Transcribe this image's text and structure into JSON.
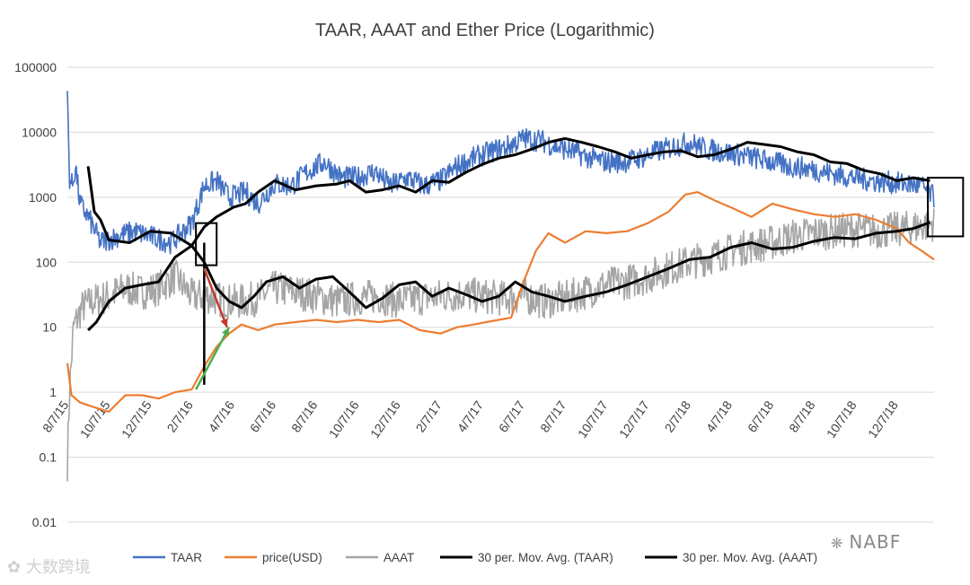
{
  "chart_data": {
    "type": "line",
    "title": "TAAR, AAAT and Ether Price (Logarithmic)",
    "yscale": "log",
    "ylim": [
      0.01,
      100000
    ],
    "y_ticks": [
      "100000",
      "10000",
      "1000",
      "100",
      "10",
      "1",
      "0.1",
      "0.01"
    ],
    "x_ticks": [
      "8/7/15",
      "10/7/15",
      "12/7/15",
      "2/7/16",
      "4/7/16",
      "6/7/16",
      "8/7/16",
      "10/7/16",
      "12/7/16",
      "2/7/17",
      "4/7/17",
      "6/7/17",
      "8/7/17",
      "10/7/17",
      "12/7/17",
      "2/7/18",
      "4/7/18",
      "6/7/18",
      "8/7/18",
      "10/7/18",
      "12/7/18"
    ],
    "x_range": [
      0,
      20.9
    ],
    "legend": "bottom",
    "series": [
      {
        "name": "TAAR",
        "color": "#4472C4",
        "noisy": true,
        "x": [
          0,
          0.05,
          0.12,
          0.2,
          0.3,
          0.5,
          0.8,
          1.2,
          1.6,
          2.0,
          2.5,
          3.0,
          3.3,
          3.6,
          3.9,
          4.3,
          4.6,
          5.0,
          5.4,
          5.8,
          6.2,
          6.6,
          7.0,
          7.4,
          7.8,
          8.2,
          8.6,
          9.0,
          9.4,
          9.8,
          10.2,
          10.6,
          11.0,
          11.4,
          11.8,
          12.2,
          12.6,
          13.0,
          13.4,
          13.8,
          14.2,
          14.6,
          15.0,
          15.4,
          15.8,
          16.2,
          16.6,
          17.0,
          17.4,
          17.8,
          18.2,
          18.6,
          19.0,
          19.4,
          19.8,
          20.2,
          20.6,
          20.9
        ],
        "y": [
          45000,
          2000,
          1500,
          3000,
          800,
          500,
          200,
          250,
          300,
          250,
          200,
          400,
          1500,
          1800,
          1000,
          1200,
          800,
          1600,
          1500,
          2500,
          3500,
          2000,
          2000,
          2500,
          1500,
          2000,
          1500,
          1800,
          3000,
          4000,
          5000,
          6000,
          8000,
          7500,
          6000,
          5000,
          4000,
          3500,
          3500,
          4000,
          5000,
          6000,
          7000,
          5500,
          5000,
          4500,
          4000,
          3500,
          3000,
          2800,
          2500,
          2200,
          2000,
          1800,
          1700,
          1600,
          1500,
          1000
        ]
      },
      {
        "name": "price(USD)",
        "color": "#ED7D31",
        "x": [
          0,
          0.1,
          0.3,
          0.6,
          1.0,
          1.4,
          1.8,
          2.2,
          2.6,
          3.0,
          3.3,
          3.6,
          3.9,
          4.2,
          4.6,
          5.0,
          5.5,
          6.0,
          6.5,
          7.0,
          7.5,
          8.0,
          8.5,
          9.0,
          9.4,
          9.8,
          10.1,
          10.4,
          10.7,
          11.0,
          11.3,
          11.6,
          12.0,
          12.5,
          13.0,
          13.5,
          14.0,
          14.5,
          14.9,
          15.2,
          15.6,
          16.0,
          16.5,
          17.0,
          17.5,
          18.0,
          18.5,
          19.0,
          19.5,
          20.0,
          20.3,
          20.6,
          20.9
        ],
        "y": [
          2.8,
          0.9,
          0.7,
          0.6,
          0.5,
          0.9,
          0.9,
          0.8,
          1.0,
          1.1,
          2.5,
          5,
          8,
          11,
          9,
          11,
          12,
          13,
          12,
          13,
          12,
          13,
          9,
          8,
          10,
          11,
          12,
          13,
          14,
          50,
          150,
          280,
          200,
          300,
          280,
          300,
          400,
          600,
          1100,
          1200,
          900,
          700,
          500,
          800,
          650,
          550,
          500,
          550,
          450,
          330,
          200,
          150,
          110
        ]
      },
      {
        "name": "AAAT",
        "color": "#A5A5A5",
        "noisy": true,
        "x": [
          0,
          0.05,
          0.15,
          0.35,
          0.6,
          1.0,
          1.4,
          1.8,
          2.2,
          2.6,
          3.0,
          3.4,
          3.8,
          4.2,
          4.6,
          5.0,
          5.5,
          6.0,
          6.5,
          7.0,
          7.5,
          8.0,
          8.5,
          9.0,
          9.5,
          10.0,
          10.5,
          11.0,
          11.5,
          12.0,
          12.5,
          13.0,
          13.5,
          14.0,
          14.5,
          15.0,
          15.5,
          16.0,
          16.5,
          17.0,
          17.5,
          18.0,
          18.5,
          19.0,
          19.5,
          20.0,
          20.5,
          20.9
        ],
        "y": [
          0.08,
          1.0,
          10,
          20,
          25,
          30,
          40,
          35,
          40,
          60,
          30,
          30,
          25,
          25,
          28,
          40,
          35,
          30,
          25,
          28,
          30,
          25,
          28,
          30,
          32,
          30,
          28,
          30,
          25,
          28,
          35,
          45,
          50,
          60,
          80,
          100,
          120,
          150,
          180,
          200,
          250,
          280,
          300,
          320,
          300,
          320,
          350,
          400
        ]
      },
      {
        "name": "30 per. Mov. Avg. (TAAR)",
        "color": "#000000",
        "x": [
          0.5,
          0.65,
          0.8,
          1.0,
          1.5,
          2.0,
          2.5,
          3.0,
          3.3,
          3.6,
          4.0,
          4.3,
          4.6,
          5.0,
          5.5,
          6.0,
          6.5,
          6.8,
          7.2,
          7.6,
          8.0,
          8.4,
          8.8,
          9.2,
          9.6,
          10.0,
          10.4,
          10.8,
          11.2,
          11.6,
          12.0,
          12.4,
          12.8,
          13.2,
          13.6,
          14.0,
          14.4,
          14.8,
          15.2,
          15.6,
          16.0,
          16.4,
          16.8,
          17.2,
          17.6,
          18.0,
          18.4,
          18.8,
          19.2,
          19.6,
          20.0,
          20.4,
          20.8
        ],
        "y": [
          3000,
          600,
          450,
          220,
          200,
          300,
          280,
          180,
          350,
          500,
          700,
          800,
          1200,
          1800,
          1300,
          1500,
          1600,
          1800,
          1200,
          1300,
          1500,
          1200,
          1800,
          1700,
          2400,
          3200,
          4000,
          4500,
          5500,
          7000,
          8000,
          7000,
          6000,
          5000,
          4000,
          4500,
          5000,
          5200,
          4200,
          4500,
          5500,
          7000,
          6500,
          6000,
          5000,
          4500,
          3500,
          3300,
          2600,
          2300,
          1800,
          2000,
          1800
        ]
      },
      {
        "name": "30  per. Mov. Avg. (AAAT)",
        "color": "#000000",
        "x": [
          0.5,
          0.7,
          1.0,
          1.4,
          1.8,
          2.2,
          2.6,
          3.0,
          3.3,
          3.6,
          3.9,
          4.2,
          4.5,
          4.8,
          5.2,
          5.6,
          6.0,
          6.4,
          6.8,
          7.2,
          7.6,
          8.0,
          8.4,
          8.8,
          9.2,
          9.6,
          10.0,
          10.4,
          10.8,
          11.2,
          11.6,
          12.0,
          12.5,
          13.0,
          13.5,
          14.0,
          14.5,
          15.0,
          15.5,
          16.0,
          16.5,
          17.0,
          17.5,
          18.0,
          18.5,
          19.0,
          19.5,
          20.0,
          20.4,
          20.8
        ],
        "y": [
          9,
          12,
          25,
          40,
          45,
          50,
          120,
          180,
          100,
          40,
          25,
          20,
          30,
          50,
          60,
          40,
          55,
          60,
          35,
          20,
          28,
          45,
          50,
          30,
          40,
          32,
          25,
          30,
          50,
          35,
          30,
          25,
          30,
          35,
          45,
          60,
          80,
          110,
          120,
          170,
          200,
          160,
          170,
          210,
          240,
          230,
          280,
          300,
          330,
          410
        ]
      }
    ],
    "annotations": [
      {
        "shape": "box",
        "x": [
          3.1,
          3.6
        ],
        "y": [
          90,
          400
        ],
        "color": "#000000"
      },
      {
        "shape": "vline",
        "x": 3.3,
        "y": [
          1.3,
          200
        ],
        "color": "#000000"
      },
      {
        "shape": "arrow",
        "from": [
          3.3,
          80
        ],
        "to": [
          3.85,
          10
        ],
        "color": "#C0392B"
      },
      {
        "shape": "arrow",
        "from": [
          3.1,
          1.1
        ],
        "to": [
          3.9,
          10
        ],
        "color": "#4CAF50"
      },
      {
        "shape": "box",
        "x": [
          20.75,
          21.6
        ],
        "y": [
          250,
          2000
        ],
        "color": "#000000"
      }
    ]
  },
  "watermarks": {
    "left": "大数跨境",
    "right": "NABF"
  }
}
